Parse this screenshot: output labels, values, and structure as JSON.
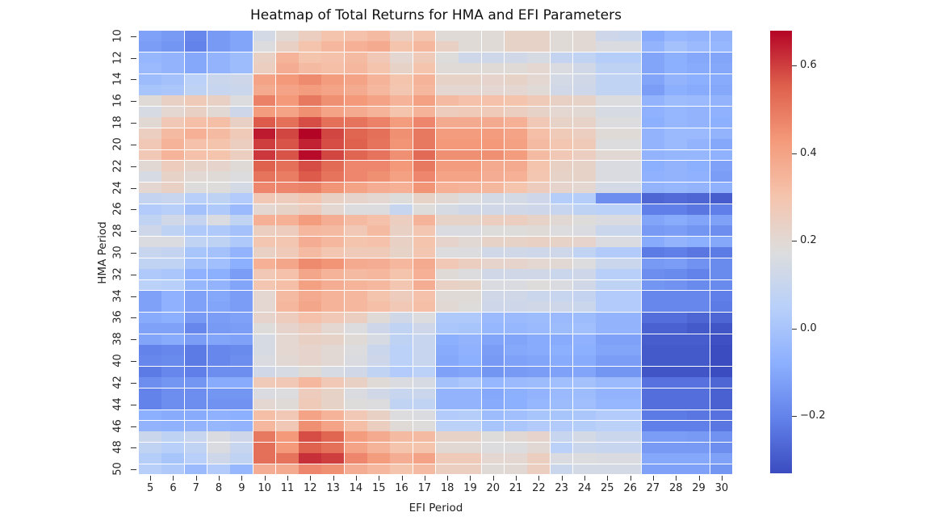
{
  "chart_data": {
    "type": "heatmap",
    "title": "Heatmap of Total Returns for HMA and EFI Parameters",
    "xlabel": "EFI Period",
    "ylabel": "HMA Period",
    "x": [
      5,
      6,
      7,
      8,
      9,
      10,
      11,
      12,
      13,
      14,
      15,
      16,
      17,
      18,
      19,
      20,
      21,
      22,
      23,
      24,
      25,
      26,
      27,
      28,
      29,
      30
    ],
    "y": [
      10,
      11,
      12,
      13,
      14,
      15,
      16,
      17,
      18,
      19,
      20,
      21,
      22,
      23,
      24,
      25,
      26,
      27,
      28,
      29,
      30,
      31,
      32,
      33,
      34,
      35,
      36,
      37,
      38,
      39,
      40,
      41,
      42,
      43,
      44,
      45,
      46,
      47,
      48,
      49,
      50
    ],
    "y_tick_labels": [
      "10",
      "12",
      "14",
      "16",
      "18",
      "20",
      "22",
      "24",
      "26",
      "28",
      "30",
      "32",
      "34",
      "36",
      "38",
      "40",
      "42",
      "44",
      "46",
      "48",
      "50"
    ],
    "x_tick_labels": [
      "5",
      "6",
      "7",
      "8",
      "9",
      "10",
      "11",
      "12",
      "13",
      "14",
      "15",
      "16",
      "17",
      "18",
      "19",
      "20",
      "21",
      "22",
      "23",
      "24",
      "25",
      "26",
      "27",
      "28",
      "29",
      "30"
    ],
    "colormap": "coolwarm",
    "vmin": -0.33,
    "vmax": 0.68,
    "colorbar_ticks": [
      -0.2,
      0.0,
      0.2,
      0.4,
      0.6
    ],
    "colorbar_tick_labels": [
      "−0.2",
      "0.0",
      "0.2",
      "0.4",
      "0.6"
    ],
    "grid": "white cell borders",
    "values": [
      [
        -0.12,
        -0.14,
        -0.19,
        -0.14,
        -0.11,
        0.14,
        0.2,
        0.25,
        0.3,
        0.31,
        0.33,
        0.25,
        0.29,
        0.19,
        0.19,
        0.19,
        0.23,
        0.23,
        0.19,
        0.2,
        0.12,
        0.11,
        -0.09,
        -0.05,
        -0.06,
        -0.06
      ],
      [
        -0.13,
        -0.15,
        -0.2,
        -0.14,
        -0.11,
        0.17,
        0.24,
        0.3,
        0.34,
        0.36,
        0.38,
        0.3,
        0.34,
        0.24,
        0.19,
        0.19,
        0.23,
        0.23,
        0.19,
        0.2,
        0.16,
        0.16,
        -0.06,
        -0.01,
        -0.04,
        -0.05
      ],
      [
        -0.05,
        -0.06,
        -0.1,
        -0.06,
        -0.03,
        0.24,
        0.35,
        0.3,
        0.31,
        0.33,
        0.28,
        0.21,
        0.27,
        0.18,
        0.12,
        0.12,
        0.13,
        0.15,
        0.09,
        0.08,
        0.04,
        0.04,
        -0.11,
        -0.08,
        -0.1,
        -0.11
      ],
      [
        -0.04,
        -0.06,
        -0.1,
        -0.06,
        -0.03,
        0.25,
        0.37,
        0.33,
        0.32,
        0.34,
        0.3,
        0.23,
        0.3,
        0.19,
        0.19,
        0.19,
        0.19,
        0.21,
        0.16,
        0.13,
        0.07,
        0.07,
        -0.11,
        -0.08,
        -0.09,
        -0.1
      ],
      [
        -0.03,
        -0.01,
        0.06,
        0.11,
        0.12,
        0.4,
        0.43,
        0.46,
        0.42,
        0.4,
        0.35,
        0.3,
        0.35,
        0.23,
        0.23,
        0.22,
        0.23,
        0.21,
        0.14,
        0.13,
        0.08,
        0.08,
        -0.11,
        -0.06,
        -0.08,
        -0.09
      ],
      [
        0.0,
        0.01,
        0.07,
        0.1,
        0.11,
        0.38,
        0.4,
        0.42,
        0.4,
        0.38,
        0.34,
        0.29,
        0.34,
        0.21,
        0.21,
        0.21,
        0.21,
        0.19,
        0.13,
        0.12,
        0.08,
        0.08,
        -0.13,
        -0.08,
        -0.09,
        -0.1
      ],
      [
        0.19,
        0.24,
        0.27,
        0.24,
        0.17,
        0.48,
        0.43,
        0.5,
        0.45,
        0.43,
        0.4,
        0.35,
        0.41,
        0.33,
        0.31,
        0.31,
        0.3,
        0.27,
        0.24,
        0.23,
        0.17,
        0.17,
        -0.06,
        -0.03,
        -0.04,
        -0.06
      ],
      [
        0.15,
        0.21,
        0.24,
        0.2,
        0.12,
        0.42,
        0.4,
        0.45,
        0.4,
        0.38,
        0.35,
        0.3,
        0.35,
        0.26,
        0.27,
        0.27,
        0.25,
        0.23,
        0.21,
        0.2,
        0.15,
        0.15,
        -0.07,
        -0.05,
        -0.06,
        -0.07
      ],
      [
        0.2,
        0.28,
        0.32,
        0.32,
        0.24,
        0.56,
        0.52,
        0.58,
        0.52,
        0.51,
        0.48,
        0.42,
        0.47,
        0.38,
        0.38,
        0.38,
        0.36,
        0.28,
        0.23,
        0.23,
        0.17,
        0.17,
        -0.08,
        -0.05,
        -0.06,
        -0.08
      ],
      [
        0.25,
        0.33,
        0.36,
        0.33,
        0.27,
        0.65,
        0.59,
        0.68,
        0.59,
        0.54,
        0.52,
        0.45,
        0.5,
        0.42,
        0.42,
        0.42,
        0.4,
        0.32,
        0.27,
        0.25,
        0.19,
        0.19,
        -0.06,
        -0.04,
        -0.04,
        -0.06
      ],
      [
        0.28,
        0.35,
        0.31,
        0.3,
        0.25,
        0.6,
        0.57,
        0.64,
        0.58,
        0.55,
        0.51,
        0.44,
        0.5,
        0.43,
        0.43,
        0.43,
        0.41,
        0.33,
        0.29,
        0.27,
        0.17,
        0.17,
        -0.06,
        -0.04,
        -0.06,
        -0.1
      ],
      [
        0.28,
        0.35,
        0.31,
        0.3,
        0.25,
        0.61,
        0.57,
        0.67,
        0.59,
        0.54,
        0.51,
        0.45,
        0.53,
        0.45,
        0.45,
        0.45,
        0.42,
        0.33,
        0.28,
        0.25,
        0.2,
        0.2,
        -0.06,
        -0.05,
        -0.05,
        -0.07
      ],
      [
        0.2,
        0.26,
        0.23,
        0.22,
        0.19,
        0.55,
        0.52,
        0.58,
        0.53,
        0.47,
        0.47,
        0.43,
        0.5,
        0.42,
        0.42,
        0.38,
        0.38,
        0.3,
        0.24,
        0.23,
        0.16,
        0.16,
        -0.08,
        -0.06,
        -0.08,
        -0.12
      ],
      [
        0.15,
        0.23,
        0.2,
        0.19,
        0.17,
        0.51,
        0.49,
        0.56,
        0.51,
        0.47,
        0.45,
        0.41,
        0.47,
        0.4,
        0.4,
        0.37,
        0.36,
        0.29,
        0.23,
        0.23,
        0.16,
        0.16,
        -0.07,
        -0.06,
        -0.07,
        -0.13
      ],
      [
        0.21,
        0.24,
        0.18,
        0.18,
        0.14,
        0.47,
        0.47,
        0.48,
        0.44,
        0.4,
        0.37,
        0.36,
        0.44,
        0.36,
        0.35,
        0.34,
        0.3,
        0.26,
        0.22,
        0.21,
        0.14,
        0.14,
        -0.06,
        -0.05,
        -0.06,
        -0.07
      ],
      [
        0.09,
        0.1,
        0.05,
        0.07,
        0.03,
        0.28,
        0.26,
        0.29,
        0.24,
        0.22,
        0.21,
        0.18,
        0.23,
        0.2,
        0.17,
        0.14,
        0.14,
        0.12,
        0.04,
        0.04,
        -0.17,
        -0.17,
        -0.27,
        -0.26,
        -0.27,
        -0.29
      ],
      [
        0.03,
        0.05,
        -0.01,
        0.02,
        -0.04,
        0.21,
        0.23,
        0.26,
        0.21,
        0.17,
        0.17,
        0.1,
        0.18,
        0.15,
        0.13,
        0.13,
        0.13,
        0.12,
        0.1,
        0.07,
        0.06,
        0.06,
        -0.21,
        -0.21,
        -0.23,
        -0.21
      ],
      [
        0.08,
        0.13,
        0.09,
        0.16,
        0.08,
        0.36,
        0.36,
        0.42,
        0.37,
        0.33,
        0.31,
        0.25,
        0.35,
        0.23,
        0.23,
        0.25,
        0.25,
        0.23,
        0.2,
        0.18,
        0.16,
        0.16,
        -0.11,
        -0.09,
        -0.11,
        -0.12
      ],
      [
        0.12,
        0.07,
        0.02,
        0.02,
        -0.01,
        0.25,
        0.26,
        0.34,
        0.33,
        0.28,
        0.33,
        0.24,
        0.29,
        0.16,
        0.16,
        0.18,
        0.18,
        0.19,
        0.17,
        0.16,
        0.11,
        0.11,
        -0.14,
        -0.13,
        -0.15,
        -0.17
      ],
      [
        0.16,
        0.16,
        0.08,
        0.07,
        0.02,
        0.29,
        0.29,
        0.37,
        0.34,
        0.3,
        0.31,
        0.24,
        0.3,
        0.22,
        0.2,
        0.23,
        0.23,
        0.24,
        0.23,
        0.22,
        0.16,
        0.16,
        -0.09,
        -0.06,
        -0.08,
        -0.1
      ],
      [
        0.1,
        0.09,
        0.0,
        -0.01,
        -0.06,
        0.24,
        0.27,
        0.33,
        0.29,
        0.27,
        0.27,
        0.23,
        0.29,
        0.17,
        0.17,
        0.13,
        0.13,
        0.12,
        0.12,
        0.08,
        0.03,
        0.03,
        -0.22,
        -0.21,
        -0.23,
        -0.22
      ],
      [
        0.08,
        0.08,
        -0.01,
        -0.02,
        -0.08,
        0.36,
        0.39,
        0.46,
        0.44,
        0.38,
        0.37,
        0.34,
        0.38,
        0.28,
        0.25,
        0.22,
        0.22,
        0.21,
        0.2,
        0.17,
        0.11,
        0.11,
        -0.14,
        -0.13,
        -0.16,
        -0.18
      ],
      [
        0.02,
        0.01,
        -0.07,
        -0.08,
        -0.13,
        0.28,
        0.31,
        0.39,
        0.35,
        0.33,
        0.34,
        0.3,
        0.36,
        0.19,
        0.17,
        0.13,
        0.13,
        0.13,
        0.11,
        0.12,
        0.05,
        0.05,
        -0.17,
        -0.18,
        -0.2,
        -0.18
      ],
      [
        0.06,
        0.05,
        -0.05,
        -0.06,
        -0.11,
        0.29,
        0.32,
        0.41,
        0.37,
        0.35,
        0.34,
        0.29,
        0.37,
        0.24,
        0.23,
        0.16,
        0.16,
        0.18,
        0.16,
        0.13,
        0.07,
        0.07,
        -0.15,
        -0.16,
        -0.18,
        -0.18
      ],
      [
        -0.12,
        -0.07,
        -0.12,
        -0.1,
        -0.13,
        0.21,
        0.33,
        0.38,
        0.35,
        0.34,
        0.3,
        0.26,
        0.31,
        0.19,
        0.19,
        0.13,
        0.13,
        0.11,
        0.1,
        0.09,
        0.03,
        0.03,
        -0.19,
        -0.19,
        -0.19,
        -0.21
      ],
      [
        -0.12,
        -0.07,
        -0.12,
        -0.11,
        -0.13,
        0.21,
        0.34,
        0.39,
        0.35,
        0.34,
        0.32,
        0.28,
        0.32,
        0.2,
        0.18,
        0.12,
        0.12,
        0.13,
        0.12,
        0.11,
        0.03,
        0.03,
        -0.19,
        -0.19,
        -0.19,
        -0.22
      ],
      [
        -0.09,
        -0.08,
        -0.14,
        -0.13,
        -0.12,
        0.22,
        0.26,
        0.31,
        0.28,
        0.25,
        0.19,
        0.13,
        0.17,
        0.02,
        0.02,
        -0.04,
        -0.04,
        -0.03,
        -0.04,
        -0.03,
        -0.06,
        -0.06,
        -0.25,
        -0.25,
        -0.27,
        -0.27
      ],
      [
        -0.12,
        -0.12,
        -0.19,
        -0.14,
        -0.13,
        0.18,
        0.22,
        0.25,
        0.21,
        0.17,
        0.12,
        0.08,
        0.12,
        0.01,
        0.0,
        -0.05,
        -0.05,
        -0.04,
        -0.03,
        -0.02,
        -0.06,
        -0.06,
        -0.28,
        -0.28,
        -0.3,
        -0.31
      ],
      [
        -0.11,
        -0.09,
        -0.13,
        -0.11,
        -0.12,
        0.15,
        0.21,
        0.24,
        0.23,
        0.19,
        0.15,
        0.07,
        0.1,
        -0.08,
        -0.06,
        -0.11,
        -0.11,
        -0.09,
        -0.09,
        -0.07,
        -0.12,
        -0.12,
        -0.29,
        -0.29,
        -0.29,
        -0.32
      ],
      [
        -0.2,
        -0.19,
        -0.22,
        -0.19,
        -0.18,
        0.15,
        0.21,
        0.22,
        0.2,
        0.17,
        0.11,
        0.06,
        0.1,
        -0.09,
        -0.07,
        -0.13,
        -0.1,
        -0.09,
        -0.08,
        -0.08,
        -0.11,
        -0.11,
        -0.3,
        -0.3,
        -0.3,
        -0.33
      ],
      [
        -0.19,
        -0.18,
        -0.22,
        -0.19,
        -0.17,
        0.16,
        0.2,
        0.22,
        0.2,
        0.16,
        0.12,
        0.06,
        0.1,
        -0.1,
        -0.08,
        -0.14,
        -0.12,
        -0.11,
        -0.09,
        -0.09,
        -0.13,
        -0.13,
        -0.3,
        -0.3,
        -0.3,
        -0.33
      ],
      [
        -0.22,
        -0.19,
        -0.21,
        -0.17,
        -0.17,
        0.13,
        0.15,
        0.19,
        0.15,
        0.13,
        0.08,
        0.03,
        0.06,
        -0.12,
        -0.11,
        -0.15,
        -0.14,
        -0.13,
        -0.12,
        -0.11,
        -0.15,
        -0.15,
        -0.31,
        -0.31,
        -0.31,
        -0.34
      ],
      [
        -0.17,
        -0.15,
        -0.15,
        -0.09,
        -0.09,
        0.27,
        0.28,
        0.34,
        0.28,
        0.24,
        0.19,
        0.16,
        0.15,
        -0.01,
        0.01,
        -0.05,
        -0.04,
        -0.03,
        -0.02,
        -0.01,
        -0.04,
        -0.04,
        -0.24,
        -0.24,
        -0.24,
        -0.27
      ],
      [
        -0.2,
        -0.17,
        -0.17,
        -0.15,
        -0.15,
        0.16,
        0.17,
        0.26,
        0.23,
        0.16,
        0.13,
        0.1,
        0.11,
        -0.06,
        -0.06,
        -0.1,
        -0.08,
        -0.06,
        -0.04,
        -0.03,
        -0.06,
        -0.06,
        -0.25,
        -0.25,
        -0.25,
        -0.28
      ],
      [
        -0.2,
        -0.17,
        -0.17,
        -0.16,
        -0.16,
        0.21,
        0.19,
        0.27,
        0.23,
        0.18,
        0.17,
        0.08,
        0.08,
        -0.06,
        -0.06,
        -0.09,
        -0.08,
        -0.05,
        -0.03,
        -0.02,
        -0.05,
        -0.05,
        -0.25,
        -0.25,
        -0.25,
        -0.28
      ],
      [
        -0.08,
        -0.09,
        -0.09,
        -0.07,
        -0.08,
        0.32,
        0.28,
        0.4,
        0.35,
        0.28,
        0.24,
        0.17,
        0.16,
        0.03,
        0.04,
        -0.03,
        -0.02,
        0.0,
        0.0,
        0.01,
        0.03,
        0.03,
        -0.22,
        -0.22,
        -0.23,
        -0.24
      ],
      [
        -0.06,
        -0.07,
        -0.06,
        -0.05,
        -0.06,
        0.34,
        0.28,
        0.45,
        0.4,
        0.32,
        0.25,
        0.19,
        0.18,
        0.06,
        0.06,
        0.0,
        0.01,
        0.03,
        0.03,
        0.04,
        0.06,
        0.06,
        -0.21,
        -0.21,
        -0.21,
        -0.23
      ],
      [
        0.11,
        0.07,
        0.1,
        0.16,
        0.12,
        0.5,
        0.43,
        0.58,
        0.54,
        0.42,
        0.38,
        0.33,
        0.33,
        0.23,
        0.23,
        0.18,
        0.2,
        0.22,
        0.1,
        0.14,
        0.11,
        0.11,
        -0.13,
        -0.13,
        -0.14,
        -0.16
      ],
      [
        0.08,
        0.05,
        0.08,
        0.16,
        0.1,
        0.52,
        0.43,
        0.55,
        0.52,
        0.4,
        0.35,
        0.3,
        0.3,
        0.2,
        0.2,
        0.17,
        0.17,
        0.2,
        0.06,
        0.11,
        0.1,
        0.1,
        -0.14,
        -0.14,
        -0.14,
        -0.17
      ],
      [
        0.04,
        0.0,
        0.05,
        0.12,
        0.08,
        0.52,
        0.51,
        0.62,
        0.6,
        0.47,
        0.42,
        0.37,
        0.4,
        0.27,
        0.27,
        0.21,
        0.21,
        0.25,
        0.16,
        0.17,
        0.16,
        0.16,
        -0.1,
        -0.1,
        -0.1,
        -0.12
      ],
      [
        0.05,
        0.02,
        -0.04,
        0.03,
        -0.05,
        0.37,
        0.38,
        0.47,
        0.45,
        0.37,
        0.34,
        0.3,
        0.33,
        0.25,
        0.25,
        0.19,
        0.2,
        0.25,
        0.11,
        0.14,
        0.14,
        0.14,
        -0.12,
        -0.12,
        -0.12,
        -0.15
      ]
    ]
  }
}
